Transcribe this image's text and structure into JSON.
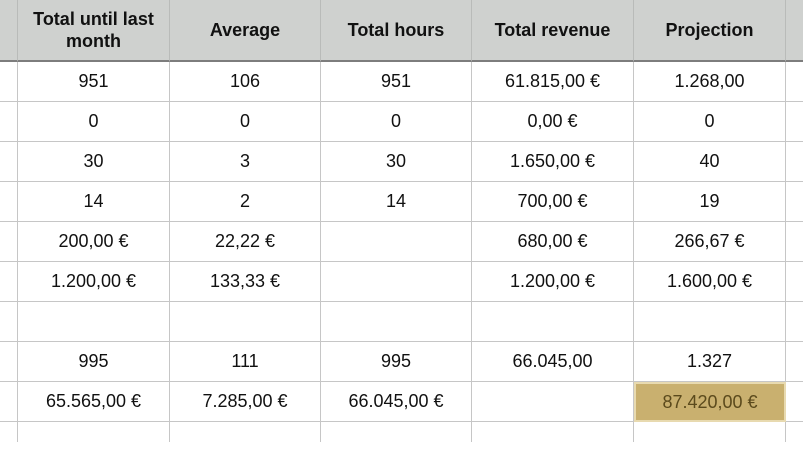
{
  "header": {
    "columns": [
      "Total until last month",
      "Average",
      "Total hours",
      "Total revenue",
      "Projection"
    ]
  },
  "rows": [
    [
      "951",
      "106",
      "951",
      "61.815,00 €",
      "1.268,00"
    ],
    [
      "0",
      "0",
      "0",
      "0,00 €",
      "0"
    ],
    [
      "30",
      "3",
      "30",
      "1.650,00 €",
      "40"
    ],
    [
      "14",
      "2",
      "14",
      "700,00 €",
      "19"
    ],
    [
      "200,00 €",
      "22,22 €",
      "",
      "680,00 €",
      "266,67 €"
    ],
    [
      "1.200,00 €",
      "133,33 €",
      "",
      "1.200,00 €",
      "1.600,00 €"
    ],
    [
      "",
      "",
      "",
      "",
      ""
    ],
    [
      "995",
      "111",
      "995",
      "66.045,00",
      "1.327"
    ],
    [
      "65.565,00 €",
      "7.285,00 €",
      "66.045,00 €",
      "",
      "87.420,00 €"
    ]
  ],
  "highlight": {
    "row": 8,
    "col": 4,
    "color": "#c9b06f"
  }
}
